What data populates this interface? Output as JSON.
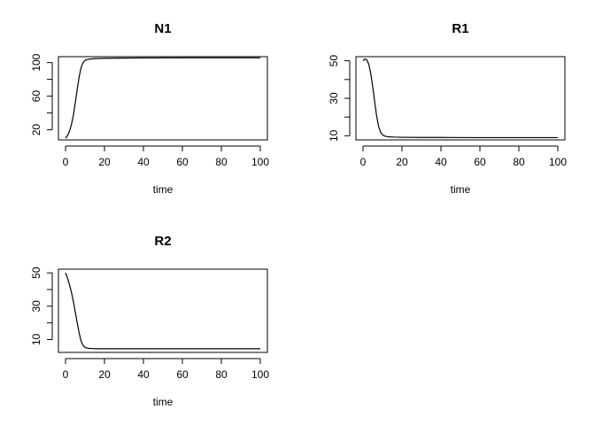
{
  "chart_data": [
    {
      "type": "line",
      "title": "N1",
      "xlabel": "time",
      "ylabel": "",
      "xlim": [
        0,
        100
      ],
      "ylim": [
        8,
        107
      ],
      "xticks": [
        0,
        20,
        40,
        60,
        80,
        100
      ],
      "yticks": [
        20,
        60,
        100
      ],
      "yminorticks": [
        40,
        80
      ],
      "series": [
        {
          "x": [
            0,
            1,
            2,
            3,
            4,
            5,
            6,
            7,
            8,
            9,
            10,
            11,
            12,
            14,
            16,
            20,
            30,
            40,
            60,
            80,
            100
          ],
          "y": [
            10,
            13,
            18,
            26,
            37,
            52,
            68,
            83,
            94,
            100,
            102.5,
            103.5,
            104,
            104.5,
            104.8,
            105,
            105.3,
            105.5,
            105.6,
            105.6,
            105.6
          ]
        }
      ]
    },
    {
      "type": "line",
      "title": "R1",
      "xlabel": "time",
      "ylabel": "",
      "xlim": [
        0,
        100
      ],
      "ylim": [
        7.8,
        52.2
      ],
      "xticks": [
        0,
        20,
        40,
        60,
        80,
        100
      ],
      "yticks": [
        10,
        30,
        50
      ],
      "yminorticks": [
        20,
        40
      ],
      "series": [
        {
          "x": [
            0,
            1,
            2,
            3,
            4,
            5,
            6,
            7,
            8,
            9,
            10,
            11,
            12,
            13,
            14,
            16,
            20,
            30,
            40,
            60,
            80,
            100
          ],
          "y": [
            50,
            51,
            50.5,
            48,
            43,
            36,
            28,
            20.5,
            15,
            12,
            10.5,
            9.9,
            9.6,
            9.5,
            9.4,
            9.3,
            9.2,
            9.1,
            9.1,
            9.0,
            9.0,
            9.0
          ]
        }
      ]
    },
    {
      "type": "line",
      "title": "R2",
      "xlabel": "time",
      "ylabel": "",
      "xlim": [
        0,
        100
      ],
      "ylim": [
        2.3,
        52.2
      ],
      "xticks": [
        0,
        20,
        40,
        60,
        80,
        100
      ],
      "yticks": [
        10,
        30,
        50
      ],
      "yminorticks": [
        20,
        40
      ],
      "series": [
        {
          "x": [
            0,
            1,
            2,
            3,
            4,
            5,
            6,
            7,
            8,
            9,
            10,
            11,
            12,
            14,
            16,
            20,
            30,
            40,
            60,
            80,
            100
          ],
          "y": [
            50,
            47,
            43,
            38.5,
            33,
            26.5,
            20,
            14,
            9,
            6.5,
            5.3,
            4.9,
            4.7,
            4.6,
            4.5,
            4.5,
            4.5,
            4.5,
            4.5,
            4.5,
            4.5
          ]
        }
      ]
    }
  ]
}
